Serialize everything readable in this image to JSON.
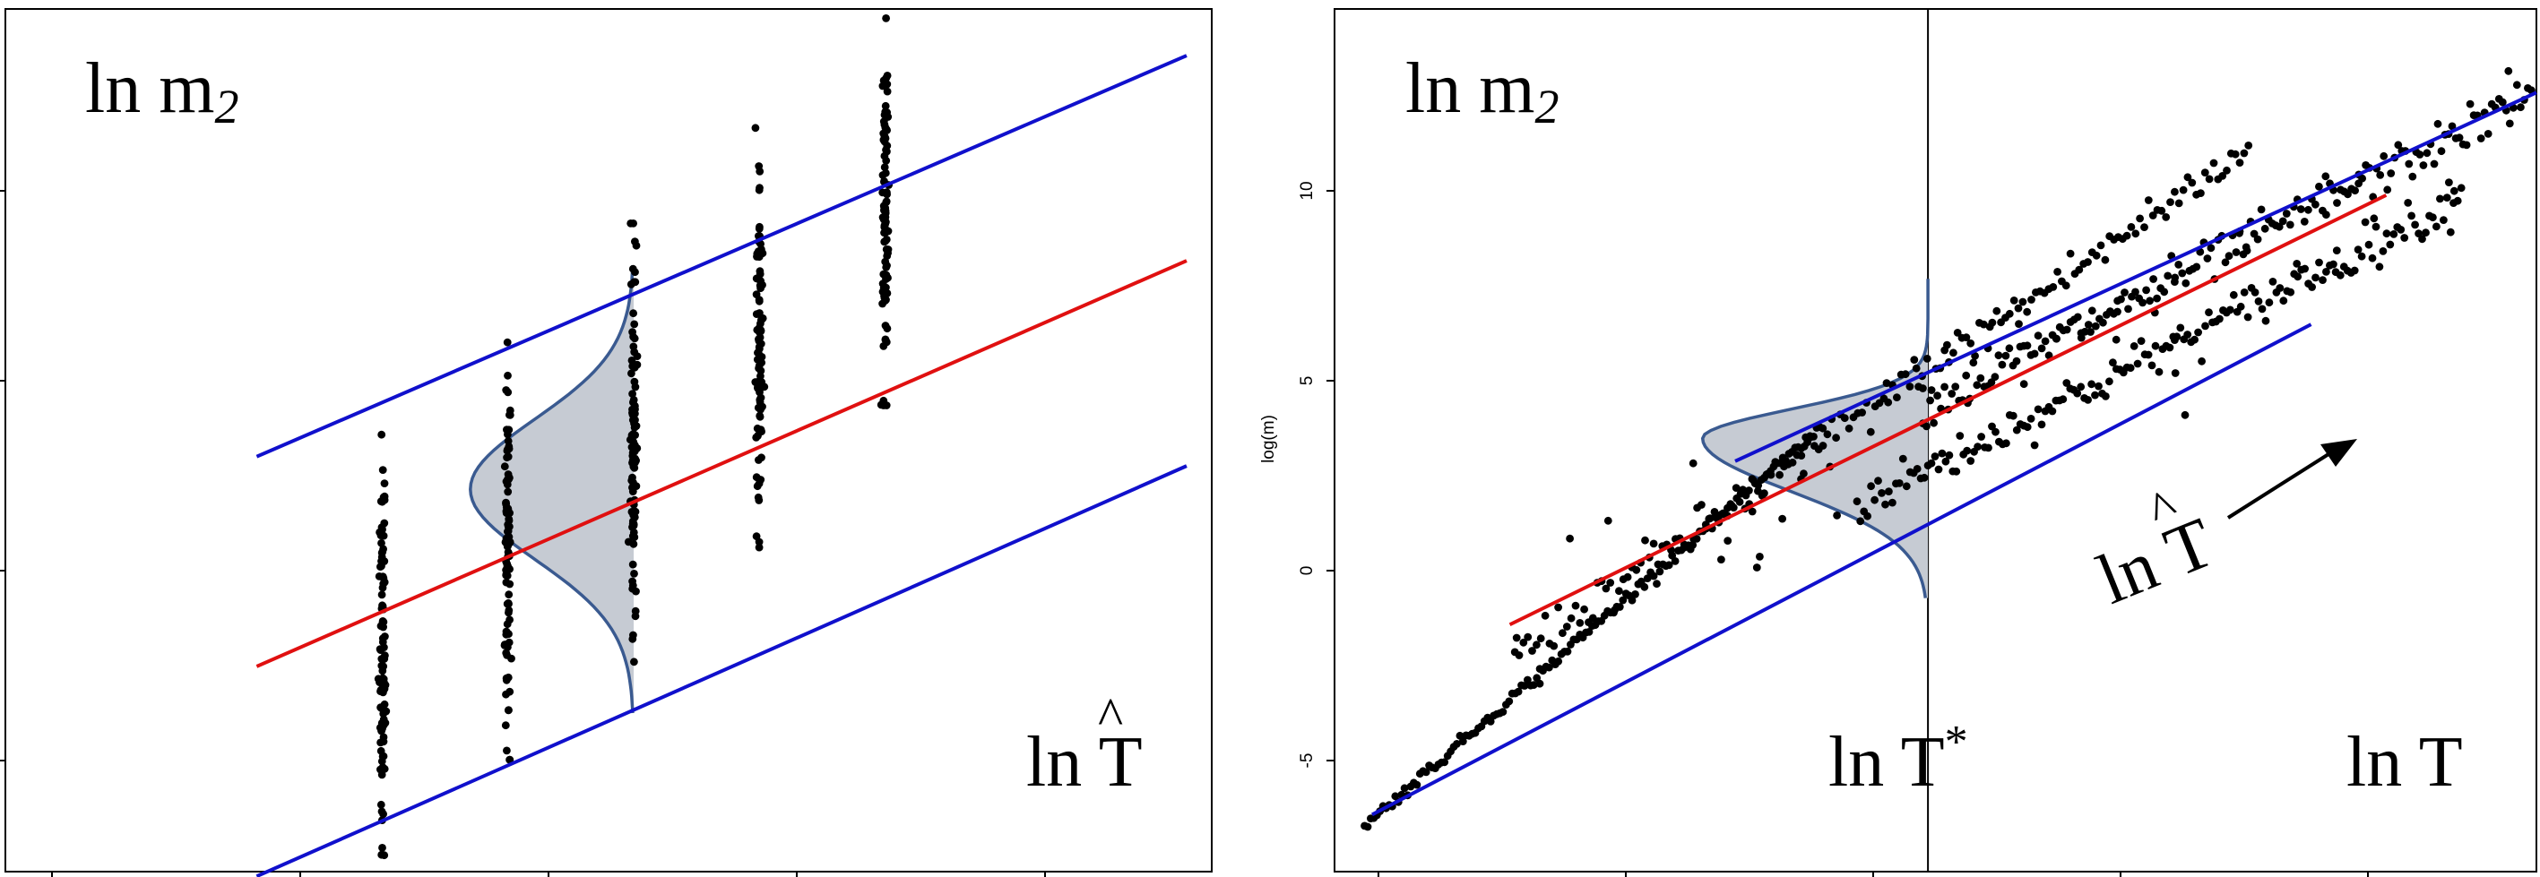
{
  "chart_data": [
    {
      "type": "scatter",
      "title": "",
      "corner_label": "ln m",
      "corner_label_sub": "2",
      "xlabel": "ln T",
      "xlabel_hat": true,
      "xlim": [
        -1,
        3.8
      ],
      "ylim": [
        -5.2,
        13.3
      ],
      "colors": {
        "upper_band": "#1010cc",
        "regression": "#e01010",
        "lower_band": "#1010cc",
        "density_fill": "#c6cbd3",
        "density_stroke": "#3a5a90",
        "points": "#000000"
      },
      "groups": [
        {
          "x": 0.5,
          "y_min": -5.3,
          "y_max": 4.5
        },
        {
          "x": 1.0,
          "y_min": -2.8,
          "y_max": 6.2
        },
        {
          "x": 1.5,
          "y_min": -0.7,
          "y_max": 8.7
        },
        {
          "x": 2.0,
          "y_min": 1.4,
          "y_max": 10.8
        },
        {
          "x": 2.5,
          "y_min": 4.8,
          "y_max": 13.1
        }
      ],
      "lines": [
        {
          "name": "",
          "role": "upper_band",
          "x": [
            0.0,
            3.7
          ],
          "y": [
            3.7,
            12.3
          ]
        },
        {
          "name": "",
          "role": "regression",
          "x": [
            0.0,
            3.7
          ],
          "y": [
            -0.8,
            7.9
          ]
        },
        {
          "name": "",
          "role": "lower_band",
          "x": [
            0.0,
            3.7
          ],
          "y": [
            -5.3,
            3.5
          ]
        }
      ],
      "density": {
        "x_center": 1.5,
        "mean": 3.0,
        "sd": 1.5,
        "peak_width": 0.65
      }
    },
    {
      "type": "scatter",
      "title": "",
      "corner_label": "ln m",
      "corner_label_sub": "2",
      "ylabel": "log(m)",
      "yticks": [
        "10",
        "5",
        "0",
        "-5"
      ],
      "yticks_values": [
        10,
        5,
        0,
        -5
      ],
      "xlim": [
        -1,
        3.8
      ],
      "ylim": [
        -7.2,
        15.5
      ],
      "regime_labels": [
        {
          "text": "ln T",
          "sup": "*"
        },
        {
          "text": "ln T",
          "sup": ""
        }
      ],
      "arrow_label": "ln T",
      "arrow_label_hat": true,
      "divider_x": 1.37,
      "colors": {
        "upper_band": "#1010cc",
        "regression": "#e01010",
        "lower_band": "#1010cc",
        "density_fill": "#c6cbd3",
        "density_stroke": "#3a5a90",
        "points": "#000000"
      },
      "branches": [
        {
          "x_start": -0.88,
          "y_start": -6.0,
          "x_end": 0.95,
          "y_end": 4.5
        },
        {
          "x_start": -0.28,
          "y_start": -1.5,
          "x_end": 2.65,
          "y_end": 11.8
        },
        {
          "x_start": 1.1,
          "y_start": 2.5,
          "x_end": 3.5,
          "y_end": 10.5
        },
        {
          "x_start": 1.35,
          "y_start": 5.0,
          "x_end": 3.78,
          "y_end": 13.2
        }
      ],
      "lines": [
        {
          "name": "",
          "role": "upper_band",
          "x": [
            0.6,
            3.8
          ],
          "y": [
            3.6,
            13.3
          ]
        },
        {
          "name": "",
          "role": "regression",
          "x": [
            -0.3,
            3.2
          ],
          "y": [
            -0.7,
            10.6
          ]
        },
        {
          "name": "",
          "role": "lower_band",
          "x": [
            -0.85,
            2.9
          ],
          "y": [
            -5.7,
            7.2
          ]
        }
      ],
      "density": {
        "y_center": 4.2,
        "x_base": 1.37,
        "spread_x": 0.9,
        "sd": 1.4
      }
    }
  ]
}
